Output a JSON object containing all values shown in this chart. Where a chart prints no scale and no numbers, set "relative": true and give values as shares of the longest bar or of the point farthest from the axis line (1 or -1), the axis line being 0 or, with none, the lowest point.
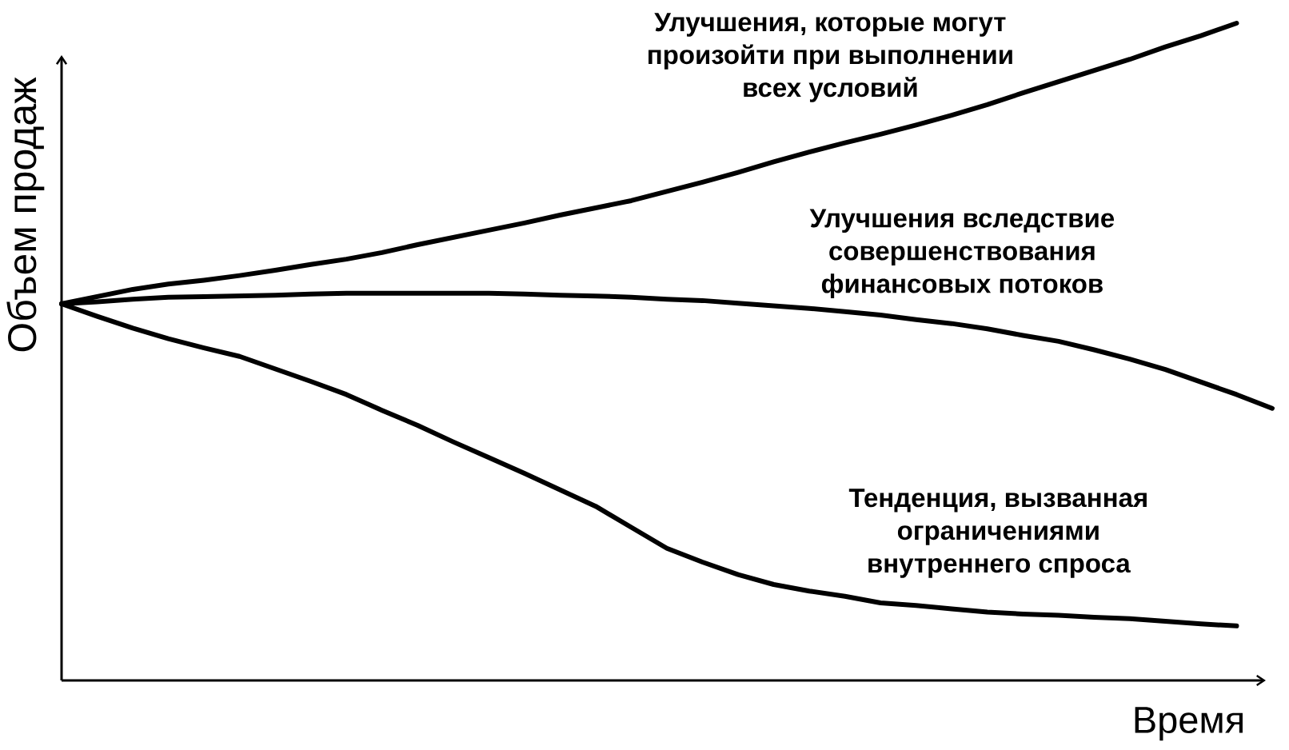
{
  "chart_data": {
    "type": "line",
    "xlabel": "Время",
    "ylabel": "Объем продаж",
    "relative": true,
    "categories": [
      null,
      null,
      null,
      null,
      null,
      null,
      null,
      null,
      null,
      null,
      null,
      null,
      null,
      null,
      null,
      null,
      null,
      null,
      null,
      null,
      null,
      null,
      null,
      null,
      null,
      null,
      null,
      null,
      null,
      null,
      null,
      null,
      null,
      null,
      null
    ],
    "series": [
      {
        "name": "Улучшения, которые могут произойти при выполнении всех условий",
        "color": "#000000",
        "values": [
          0.573,
          0.584,
          0.595,
          0.603,
          0.609,
          0.616,
          0.624,
          0.633,
          0.641,
          0.651,
          0.663,
          0.674,
          0.685,
          0.696,
          0.708,
          0.719,
          0.73,
          0.744,
          0.758,
          0.773,
          0.789,
          0.804,
          0.818,
          0.831,
          0.845,
          0.86,
          0.876,
          0.894,
          0.911,
          0.928,
          0.945,
          0.964,
          0.981,
          1,
          null
        ]
      },
      {
        "name": "Улучшения вследствие совершенствования финансовых потоков",
        "color": "#000000",
        "values": [
          0.573,
          0.576,
          0.58,
          0.583,
          0.584,
          0.585,
          0.586,
          0.588,
          0.589,
          0.589,
          0.589,
          0.589,
          0.589,
          0.588,
          0.586,
          0.585,
          0.583,
          0.58,
          0.578,
          0.574,
          0.57,
          0.566,
          0.561,
          0.556,
          0.549,
          0.543,
          0.535,
          0.525,
          0.516,
          0.503,
          0.489,
          0.473,
          0.454,
          0.435,
          0.414
        ]
      },
      {
        "name": "Тенденция, вызванная ограничениями внутреннего спроса",
        "color": "#000000",
        "values": [
          0.573,
          0.554,
          0.536,
          0.52,
          0.506,
          0.493,
          0.474,
          0.455,
          0.435,
          0.411,
          0.388,
          0.363,
          0.339,
          0.315,
          0.29,
          0.265,
          0.233,
          0.201,
          0.18,
          0.161,
          0.146,
          0.136,
          0.128,
          0.118,
          0.114,
          0.109,
          0.104,
          0.101,
          0.099,
          0.096,
          0.094,
          0.09,
          0.086,
          0.083,
          null
        ]
      }
    ]
  }
}
